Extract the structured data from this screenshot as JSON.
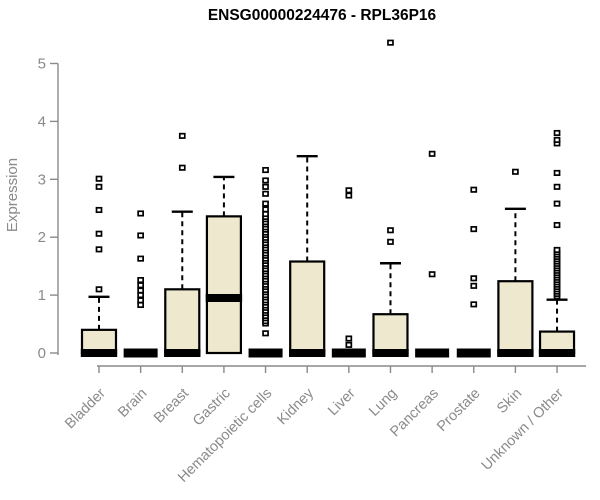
{
  "chart_data": {
    "type": "boxplot",
    "title": "ENSG00000224476 - RPL36P16",
    "xlabel": "",
    "ylabel": "Expression",
    "ylim": [
      0,
      5
    ],
    "yticks": [
      0,
      1,
      2,
      3,
      4,
      5
    ],
    "grid": false,
    "legend": "none",
    "categories": [
      "Bladder",
      "Brain",
      "Breast",
      "Gastric",
      "Hematopoietic cells",
      "Kidney",
      "Liver",
      "Lung",
      "Pancreas",
      "Prostate",
      "Skin",
      "Unknown / Other"
    ],
    "series": [
      {
        "category": "Bladder",
        "q1": 0,
        "median": 0,
        "q3": 0.4,
        "whisker_low": 0,
        "whisker_high": 0.97,
        "outliers": [
          1.1,
          1.79,
          2.06,
          2.47,
          2.87,
          3.01
        ]
      },
      {
        "category": "Brain",
        "q1": 0,
        "median": 0,
        "q3": 0,
        "whisker_low": 0,
        "whisker_high": 0,
        "outliers": [
          0.83,
          0.91,
          1.0,
          1.08,
          1.17,
          1.26,
          1.63,
          2.03,
          2.41
        ]
      },
      {
        "category": "Breast",
        "q1": 0,
        "median": 0,
        "q3": 1.1,
        "whisker_low": 0,
        "whisker_high": 2.44,
        "outliers": [
          3.2,
          3.75
        ]
      },
      {
        "category": "Gastric",
        "q1": 0,
        "median": 0.95,
        "q3": 2.36,
        "whisker_low": 0,
        "whisker_high": 3.04,
        "outliers": []
      },
      {
        "category": "Hematopoietic cells",
        "q1": 0,
        "median": 0,
        "q3": 0,
        "whisker_low": 0,
        "whisker_high": 0,
        "outliers": [
          0.34,
          0.51,
          0.55,
          0.6,
          0.64,
          0.69,
          0.73,
          0.78,
          0.82,
          0.87,
          0.91,
          0.96,
          1.0,
          1.05,
          1.09,
          1.14,
          1.18,
          1.23,
          1.27,
          1.32,
          1.36,
          1.41,
          1.45,
          1.5,
          1.54,
          1.59,
          1.63,
          1.68,
          1.72,
          1.77,
          1.81,
          1.86,
          1.9,
          1.95,
          1.99,
          2.04,
          2.08,
          2.13,
          2.17,
          2.22,
          2.26,
          2.31,
          2.35,
          2.4,
          2.48,
          2.58,
          2.75,
          2.87,
          2.98,
          3.16
        ]
      },
      {
        "category": "Kidney",
        "q1": 0,
        "median": 0,
        "q3": 1.58,
        "whisker_low": 0,
        "whisker_high": 3.4,
        "outliers": []
      },
      {
        "category": "Liver",
        "q1": 0,
        "median": 0,
        "q3": 0,
        "whisker_low": 0,
        "whisker_high": 0,
        "outliers": [
          0.14,
          0.25,
          2.72,
          2.81
        ]
      },
      {
        "category": "Lung",
        "q1": 0,
        "median": 0,
        "q3": 0.67,
        "whisker_low": 0,
        "whisker_high": 1.55,
        "outliers": [
          1.92,
          2.12,
          5.36
        ]
      },
      {
        "category": "Pancreas",
        "q1": 0,
        "median": 0,
        "q3": 0,
        "whisker_low": 0,
        "whisker_high": 0,
        "outliers": [
          1.36,
          3.44
        ]
      },
      {
        "category": "Prostate",
        "q1": 0,
        "median": 0,
        "q3": 0,
        "whisker_low": 0,
        "whisker_high": 0,
        "outliers": [
          0.84,
          1.16,
          1.29,
          2.14,
          2.82
        ]
      },
      {
        "category": "Skin",
        "q1": 0,
        "median": 0,
        "q3": 1.24,
        "whisker_low": 0,
        "whisker_high": 2.49,
        "outliers": [
          3.13
        ]
      },
      {
        "category": "Unknown / Other",
        "q1": 0,
        "median": 0,
        "q3": 0.37,
        "whisker_low": 0,
        "whisker_high": 0.92,
        "outliers": [
          0.98,
          1.02,
          1.06,
          1.1,
          1.14,
          1.18,
          1.22,
          1.26,
          1.3,
          1.34,
          1.38,
          1.42,
          1.46,
          1.5,
          1.54,
          1.58,
          1.62,
          1.66,
          1.7,
          1.74,
          1.78,
          2.21,
          2.58,
          2.87,
          3.11,
          3.62,
          3.68,
          3.8
        ]
      }
    ],
    "colors": {
      "box_fill": "#EDE8CE",
      "box_border": "#000000",
      "median": "#000000",
      "outlier_fill": "#ffffff",
      "axis": "#8a8a8a",
      "tick_label": "#8a8a8a",
      "title": "#000000"
    }
  }
}
